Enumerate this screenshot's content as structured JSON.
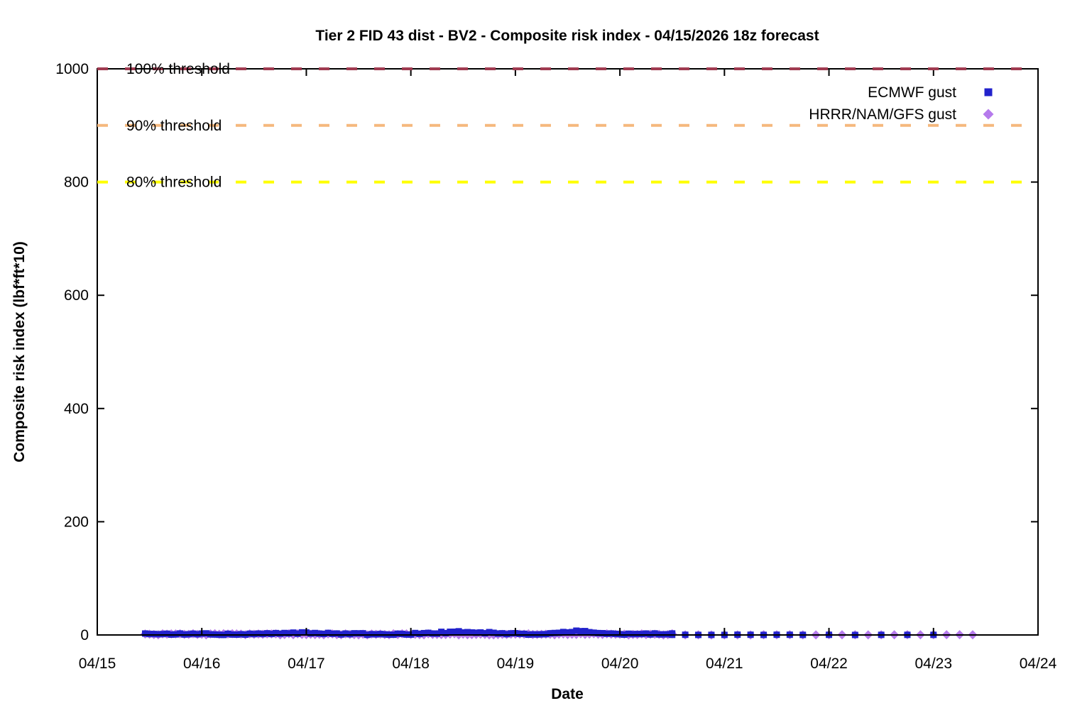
{
  "chart_data": {
    "type": "scatter",
    "title": "Tier 2 FID 43 dist - BV2 - Composite risk index - 04/15/2026 18z forecast",
    "xlabel": "Date",
    "ylabel": "Composite risk index (lbf*ft*10)",
    "x_axis": {
      "tick_labels": [
        "04/15",
        "04/16",
        "04/17",
        "04/18",
        "04/19",
        "04/20",
        "04/21",
        "04/22",
        "04/23",
        "04/24"
      ],
      "range_days": [
        0,
        9
      ],
      "grid": false
    },
    "y_axis": {
      "ticks": [
        0,
        200,
        400,
        600,
        800,
        1000
      ],
      "range": [
        0,
        1000
      ],
      "grid": false
    },
    "thresholds": [
      {
        "label": "100% threshold",
        "value": 1000,
        "color": "#a03a50",
        "style": "dashed"
      },
      {
        "label": "90% threshold",
        "value": 900,
        "color": "#f5b87d",
        "style": "dashed"
      },
      {
        "label": "80% threshold",
        "value": 800,
        "color": "#ffff00",
        "style": "dashed"
      }
    ],
    "legend": {
      "position": "top-right-inside",
      "entries": [
        {
          "label": "ECMWF gust",
          "marker": "square",
          "color": "#2222cc"
        },
        {
          "label": "HRRR/NAM/GFS gust",
          "marker": "diamond",
          "color": "#b57aec"
        }
      ]
    },
    "series": [
      {
        "name": "HRRR/NAM/GFS gust",
        "marker": "diamond",
        "color": "#b57aec",
        "note": "values hug 0 for the whole forecast period",
        "segments": [
          {
            "start_day": 0.4583,
            "end_day": 5.5,
            "step_hours": 1,
            "value_min": 0,
            "value_max": 2.2
          },
          {
            "start_day": 5.625,
            "end_day": 8.4583,
            "step_hours": 3,
            "value_min": 0,
            "value_max": 0.5
          }
        ],
        "bumps": []
      },
      {
        "name": "ECMWF gust",
        "marker": "square",
        "color": "#2222cc",
        "note": "values hug 0 with tiny peaks (<10) near 04/18 12z and 04/19 15z",
        "segments": [
          {
            "start_day": 0.4583,
            "end_day": 5.5,
            "step_hours": 1,
            "value_min": 0,
            "value_max": 2.8
          },
          {
            "start_day": 5.5,
            "end_day": 6.75,
            "step_hours": 3,
            "value_min": 0,
            "value_max": 0.5
          },
          {
            "start_day": 7.0,
            "end_day": 8.2083,
            "step_hours": 6,
            "value_min": 0,
            "value_max": 0.5
          }
        ],
        "bumps": [
          {
            "center_day": 2.05,
            "width_days": 0.3,
            "peak_value": 2
          },
          {
            "center_day": 3.5,
            "width_days": 0.35,
            "peak_value": 4
          },
          {
            "center_day": 4.62,
            "width_days": 0.18,
            "peak_value": 6
          }
        ]
      }
    ]
  },
  "layout_colors": {
    "background": "#ffffff",
    "axis": "#000000"
  }
}
